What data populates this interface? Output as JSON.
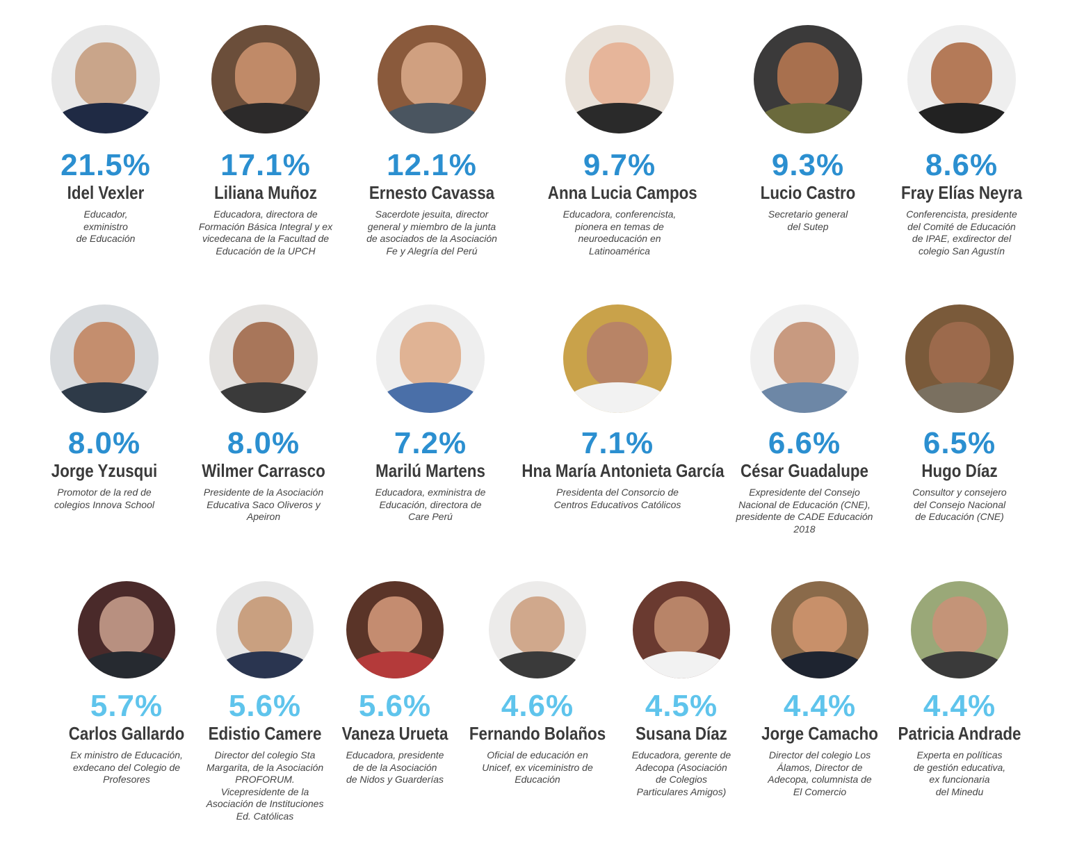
{
  "rows": [
    [
      {
        "pct": "21.5%",
        "name": "Idel Vexler",
        "desc": "Educador,\nexministro\nde Educación",
        "skin": "#c9a58a",
        "bg": "#e8e8e8",
        "clothes": "#1f2a44"
      },
      {
        "pct": "17.1%",
        "name": "Liliana Muñoz",
        "desc": "Educadora, directora de\nFormación Básica Integral y ex\nvicedecana de la Facultad de\nEducación de la UPCH",
        "skin": "#c08a68",
        "bg": "#6b4e3a",
        "clothes": "#2c2a2a"
      },
      {
        "pct": "12.1%",
        "name": "Ernesto Cavassa",
        "desc": "Sacerdote jesuita, director\ngeneral y miembro de la junta\nde asociados de la Asociación\nFe y Alegría del Perú",
        "skin": "#d0a080",
        "bg": "#8a5a3c",
        "clothes": "#4a5560"
      },
      {
        "pct": "9.7%",
        "name": "Anna Lucia Campos",
        "desc": "Educadora, conferencista,\npionera en temas de\nneuroeducación en\nLatinoamérica",
        "skin": "#e6b59a",
        "bg": "#e9e2da",
        "clothes": "#2a2a2a"
      },
      {
        "pct": "9.3%",
        "name": "Lucio Castro",
        "desc": "Secretario general\ndel Sutep",
        "skin": "#a8704e",
        "bg": "#3b3a3a",
        "clothes": "#6b6a3c"
      },
      {
        "pct": "8.6%",
        "name": "Fray Elías Neyra",
        "desc": "Conferencista, presidente\ndel Comité de Educación\nde IPAE, exdirector del\ncolegio San Agustín",
        "skin": "#b47a58",
        "bg": "#eeeeee",
        "clothes": "#222222"
      }
    ],
    [
      {
        "pct": "8.0%",
        "name": "Jorge Yzusqui",
        "desc": "Promotor de la red de\ncolegios Innova School",
        "skin": "#c48e6e",
        "bg": "#d9dcdf",
        "clothes": "#2e3a48"
      },
      {
        "pct": "8.0%",
        "name": "Wilmer Carrasco",
        "desc": "Presidente de la Asociación\nEducativa Saco Oliveros y\nApeiron",
        "skin": "#a8765a",
        "bg": "#e4e2e0",
        "clothes": "#3a3a3a"
      },
      {
        "pct": "7.2%",
        "name": "Marilú Martens",
        "desc": "Educadora, exministra de\nEducación, directora de\nCare Perú",
        "skin": "#e0b394",
        "bg": "#eeeeee",
        "clothes": "#4a6fa8"
      },
      {
        "pct": "7.1%",
        "name": "Hna María Antonieta García",
        "desc": "Presidenta del Consorcio de\nCentros Educativos Católicos",
        "skin": "#b88466",
        "bg": "#c9a24a",
        "clothes": "#f2f2f2"
      },
      {
        "pct": "6.6%",
        "name": "César Guadalupe",
        "desc": "Expresidente del Consejo\nNacional de Educación (CNE),\npresidente de CADE Educación\n2018",
        "skin": "#c89a80",
        "bg": "#f0f0f0",
        "clothes": "#6d87a6"
      },
      {
        "pct": "6.5%",
        "name": "Hugo Díaz",
        "desc": "Consultor y consejero\ndel Consejo Nacional\nde Educación (CNE)",
        "skin": "#9c6a4c",
        "bg": "#7a5a3a",
        "clothes": "#7a7060"
      }
    ],
    [
      {
        "pct": "5.7%",
        "name": "Carlos Gallardo",
        "desc": "Ex ministro de Educación,\nexdecano del Colegio de\nProfesores",
        "skin": "#b89080",
        "bg": "#4a2a2a",
        "clothes": "#262a30"
      },
      {
        "pct": "5.6%",
        "name": "Edistio Camere",
        "desc": "Director del colegio Sta\nMargarita, de la Asociación\nPROFORUM.\nVicepresidente de la\nAsociación de Instituciones\nEd. Católicas",
        "skin": "#c9a080",
        "bg": "#e6e6e6",
        "clothes": "#2a3550"
      },
      {
        "pct": "5.6%",
        "name": "Vaneza Urueta",
        "desc": "Educadora, presidente\nde de la Asociación\nde Nidos y Guarderías",
        "skin": "#c48c70",
        "bg": "#5a3428",
        "clothes": "#b43a3a"
      },
      {
        "pct": "4.6%",
        "name": "Fernando Bolaños",
        "desc": "Oficial de educación en\nUnicef, ex viceministro de\nEducación",
        "skin": "#d0a88c",
        "bg": "#ecebea",
        "clothes": "#3a3a3a"
      },
      {
        "pct": "4.5%",
        "name": "Susana Díaz",
        "desc": "Educadora, gerente de\nAdecopa (Asociación\nde Colegios\nParticulares Amigos)",
        "skin": "#b88468",
        "bg": "#6a3a30",
        "clothes": "#f2f2f2"
      },
      {
        "pct": "4.4%",
        "name": "Jorge Camacho",
        "desc": "Director del colegio Los\nÁlamos, Director de\nAdecopa, columnista de\nEl Comercio",
        "skin": "#c8906a",
        "bg": "#8a6a4a",
        "clothes": "#1e2430"
      },
      {
        "pct": "4.4%",
        "name": "Patricia Andrade",
        "desc": "Experta en políticas\nde gestión educativa,\nex funcionaria\ndel Minedu",
        "skin": "#c49478",
        "bg": "#9aa878",
        "clothes": "#3a3a3a"
      }
    ]
  ]
}
